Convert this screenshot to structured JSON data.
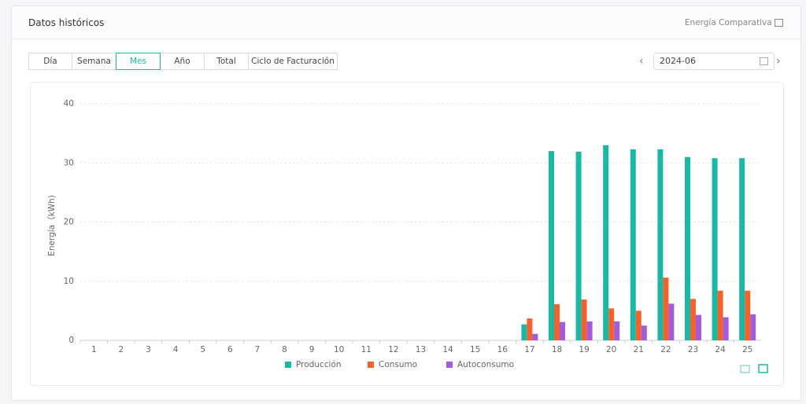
{
  "header": {
    "title": "Datos históricos",
    "link": "Energía Comparativa"
  },
  "tabs": [
    "Día",
    "Semana",
    "Mes",
    "Año",
    "Total",
    "Ciclo de Facturación"
  ],
  "active_tab": "Mes",
  "date": "2024-06",
  "chart_data": {
    "type": "bar",
    "y_label": "Energía（kWh)",
    "categories": [
      "1",
      "2",
      "3",
      "4",
      "5",
      "6",
      "7",
      "8",
      "9",
      "10",
      "11",
      "12",
      "13",
      "14",
      "15",
      "16",
      "17",
      "18",
      "19",
      "20",
      "21",
      "22",
      "23",
      "24",
      "25"
    ],
    "series": [
      {
        "name": "Producción",
        "color": "#1bb9a5",
        "values": [
          null,
          null,
          null,
          null,
          null,
          null,
          null,
          null,
          null,
          null,
          null,
          null,
          null,
          null,
          null,
          null,
          2.7,
          32.0,
          31.9,
          33.0,
          32.3,
          32.3,
          31.0,
          30.8,
          30.8
        ]
      },
      {
        "name": "Consumo",
        "color": "#f1622c",
        "values": [
          null,
          null,
          null,
          null,
          null,
          null,
          null,
          null,
          null,
          null,
          null,
          null,
          null,
          null,
          null,
          null,
          3.7,
          6.1,
          6.9,
          5.4,
          5.0,
          10.6,
          7.0,
          8.4,
          8.4
        ]
      },
      {
        "name": "Autoconsumo",
        "color": "#a25bd9",
        "values": [
          null,
          null,
          null,
          null,
          null,
          null,
          null,
          null,
          null,
          null,
          null,
          null,
          null,
          null,
          null,
          null,
          1.1,
          3.1,
          3.2,
          3.2,
          2.5,
          6.2,
          4.3,
          3.9,
          4.4
        ]
      }
    ],
    "ylim": [
      0,
      40
    ],
    "yticks": [
      0,
      10,
      20,
      30,
      40
    ],
    "grid": true
  }
}
